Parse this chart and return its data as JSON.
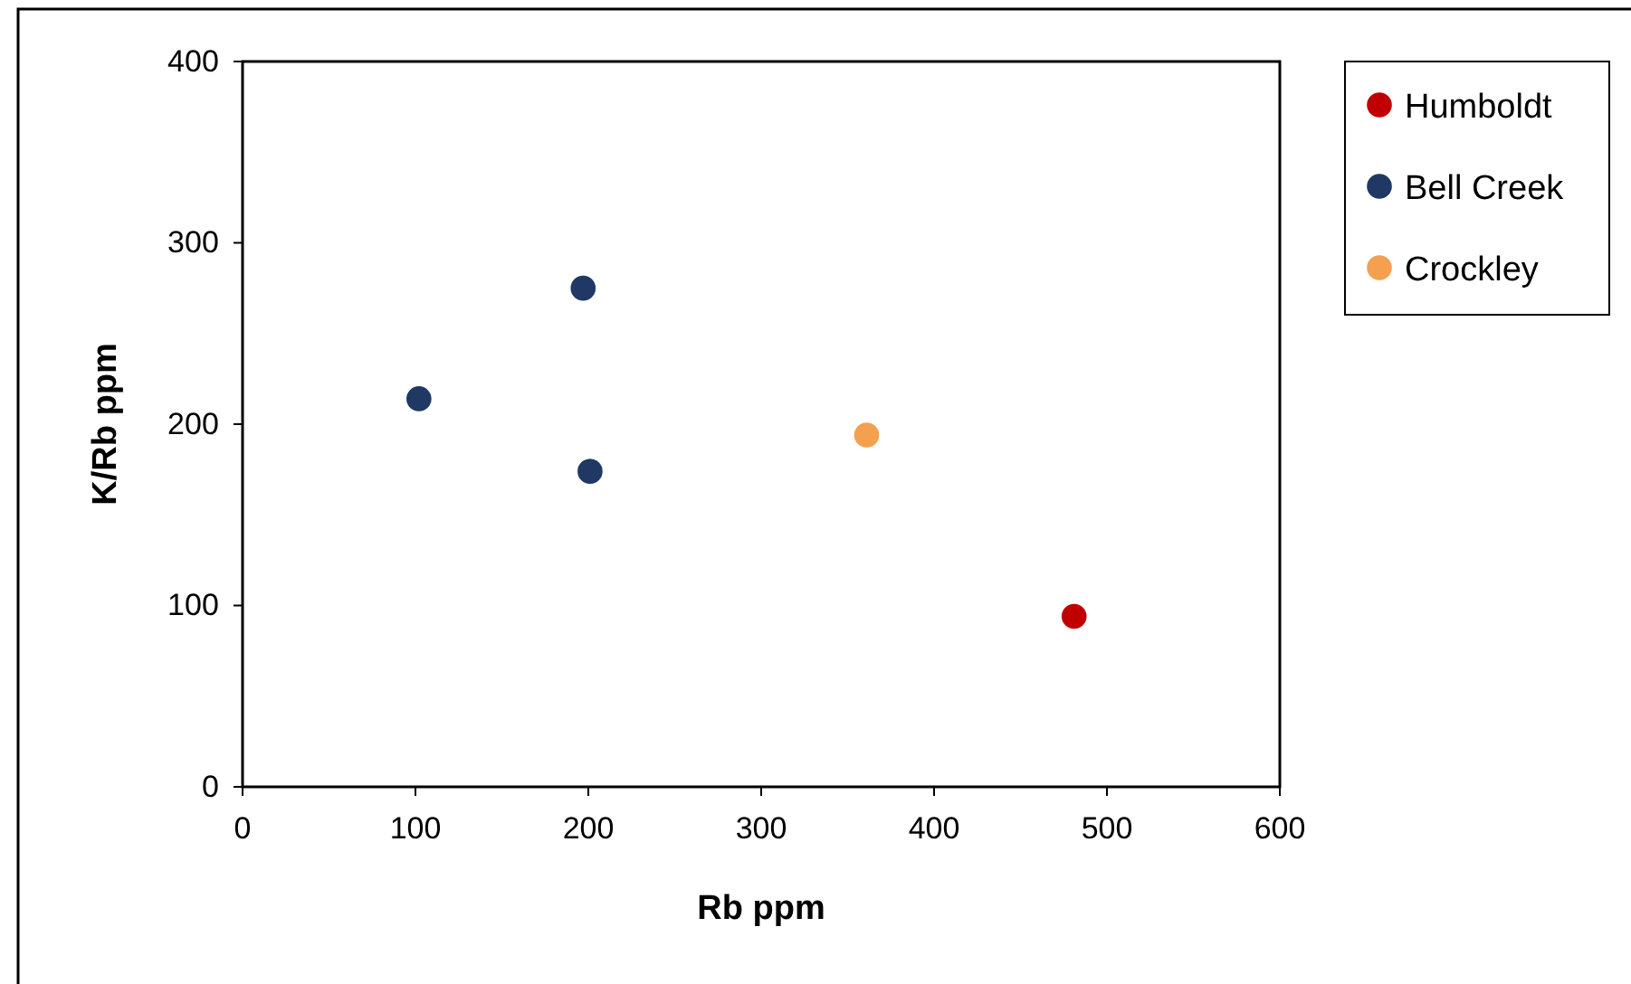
{
  "chart_data": {
    "type": "scatter",
    "xlabel": "Rb ppm",
    "ylabel": "K/Rb ppm",
    "xlim": [
      0,
      600
    ],
    "xticks": [
      0,
      100,
      200,
      300,
      400,
      500,
      600
    ],
    "ylim": [
      0,
      400
    ],
    "yticks": [
      0,
      100,
      200,
      300,
      400
    ],
    "grid": false,
    "legend": "top right",
    "marker": "circle",
    "series": [
      {
        "name": "Humboldt",
        "color": "#c00000",
        "x": [
          481
        ],
        "values": [
          94
        ]
      },
      {
        "name": "Bell Creek",
        "color": "#203864",
        "x": [
          102,
          197,
          201
        ],
        "values": [
          214,
          275,
          174
        ]
      },
      {
        "name": "Crockley",
        "color": "#f4a04f",
        "x": [
          361
        ],
        "values": [
          194
        ]
      }
    ]
  }
}
